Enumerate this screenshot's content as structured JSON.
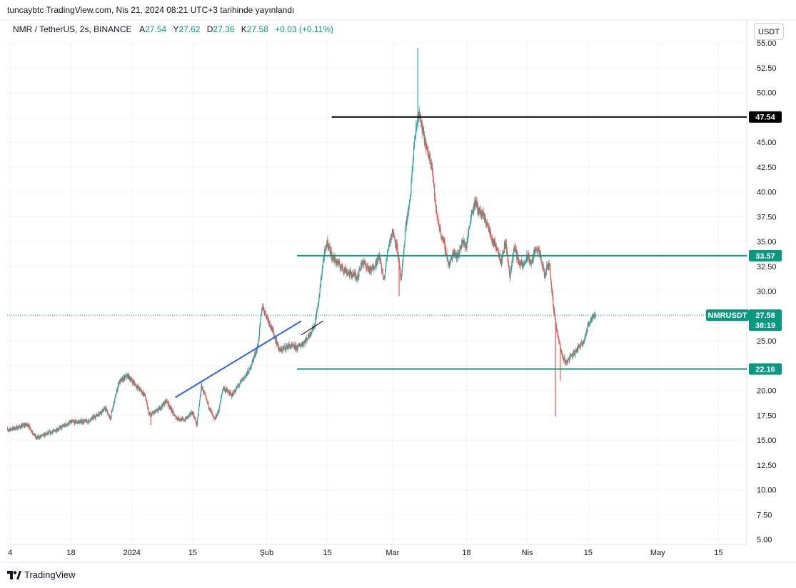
{
  "header": {
    "caption": "tuncaybtc TradingView.com, Nis 21, 2024 08:21 UTC+3 tarihinde yayınlandı"
  },
  "legend": {
    "symbol": "NMR / TetherUS, 2s, BINANCE",
    "open_label": "A",
    "open_value": "27.54",
    "high_label": "Y",
    "high_value": "27.62",
    "low_label": "D",
    "low_value": "27.36",
    "close_label": "K",
    "close_value": "27.58",
    "change": "+0.03 (+0.11%)"
  },
  "currency_button": "USDT",
  "footer": {
    "brand": "TradingView"
  },
  "colors": {
    "up": "#26a69a",
    "down": "#ef5350",
    "hline_teal": "#089981",
    "hline_black": "#000000",
    "trend_blue": "#2962ff",
    "grid": "#f0f3fa"
  },
  "chart_data": {
    "type": "candlestick",
    "title": "NMR / TetherUS, 2s, BINANCE",
    "y_axis": {
      "range": [
        4.5,
        55.0
      ],
      "ticks": [
        "5.00",
        "7.50",
        "10.00",
        "12.50",
        "15.00",
        "17.50",
        "20.00",
        "22.50",
        "25.00",
        "27.50",
        "30.00",
        "32.50",
        "35.00",
        "37.50",
        "40.00",
        "42.50",
        "45.00",
        "47.50",
        "50.00",
        "52.50",
        "55.00"
      ]
    },
    "x_axis": {
      "labels": [
        {
          "text": "4",
          "day": 4
        },
        {
          "text": "18",
          "day": 18
        },
        {
          "text": "2024",
          "day": 32
        },
        {
          "text": "15",
          "day": 46
        },
        {
          "text": "Şub",
          "day": 63
        },
        {
          "text": "15",
          "day": 77
        },
        {
          "text": "Mar",
          "day": 92
        },
        {
          "text": "18",
          "day": 109
        },
        {
          "text": "Nis",
          "day": 123
        },
        {
          "text": "15",
          "day": 137
        },
        {
          "text": "May",
          "day": 153
        },
        {
          "text": "15",
          "day": 167
        }
      ]
    },
    "price_path": [
      [
        3,
        16.0
      ],
      [
        6,
        16.3
      ],
      [
        8,
        16.6
      ],
      [
        10,
        15.2
      ],
      [
        14,
        15.9
      ],
      [
        18,
        16.8
      ],
      [
        22,
        16.9
      ],
      [
        26,
        18.2
      ],
      [
        27,
        17.1
      ],
      [
        29,
        20.8
      ],
      [
        31,
        21.5
      ],
      [
        33,
        20.5
      ],
      [
        35,
        19.5
      ],
      [
        36,
        17.5
      ],
      [
        38,
        18.0
      ],
      [
        40,
        19.0
      ],
      [
        42,
        17.3
      ],
      [
        44,
        17.0
      ],
      [
        46,
        17.8
      ],
      [
        47,
        16.5
      ],
      [
        48,
        20.5
      ],
      [
        49,
        19.2
      ],
      [
        51,
        17.0
      ],
      [
        52,
        18.0
      ],
      [
        53,
        20.3
      ],
      [
        55,
        19.5
      ],
      [
        57,
        20.8
      ],
      [
        59,
        22.0
      ],
      [
        61,
        24.5
      ],
      [
        62,
        28.5
      ],
      [
        63,
        27.5
      ],
      [
        64,
        26.5
      ],
      [
        66,
        24.0
      ],
      [
        68,
        24.5
      ],
      [
        70,
        24.3
      ],
      [
        72,
        25.0
      ],
      [
        74,
        26.5
      ],
      [
        75,
        29.0
      ],
      [
        76,
        33.0
      ],
      [
        77,
        35.0
      ],
      [
        78,
        33.5
      ],
      [
        79,
        33.0
      ],
      [
        80,
        32.5
      ],
      [
        82,
        31.8
      ],
      [
        84,
        31.5
      ],
      [
        85,
        33.0
      ],
      [
        87,
        32.0
      ],
      [
        89,
        33.5
      ],
      [
        90,
        31.0
      ],
      [
        91,
        34.5
      ],
      [
        92,
        36.0
      ],
      [
        93,
        34.5
      ],
      [
        94,
        31.0
      ],
      [
        95,
        36.5
      ],
      [
        96,
        39.0
      ],
      [
        97,
        45.0
      ],
      [
        98,
        48.0
      ],
      [
        99,
        46.0
      ],
      [
        100,
        44.0
      ],
      [
        101,
        43.0
      ],
      [
        102,
        38.0
      ],
      [
        103,
        36.0
      ],
      [
        104,
        34.5
      ],
      [
        105,
        32.5
      ],
      [
        106,
        34.0
      ],
      [
        107,
        33.5
      ],
      [
        108,
        35.0
      ],
      [
        109,
        34.5
      ],
      [
        110,
        37.5
      ],
      [
        111,
        39.0
      ],
      [
        112,
        38.0
      ],
      [
        113,
        37.5
      ],
      [
        114,
        36.5
      ],
      [
        115,
        35.0
      ],
      [
        116,
        34.5
      ],
      [
        117,
        33.0
      ],
      [
        118,
        35.0
      ],
      [
        119,
        31.5
      ],
      [
        120,
        34.5
      ],
      [
        121,
        33.0
      ],
      [
        122,
        32.5
      ],
      [
        123,
        33.5
      ],
      [
        124,
        32.8
      ],
      [
        125,
        34.5
      ],
      [
        126,
        33.5
      ],
      [
        127,
        31.5
      ],
      [
        128,
        33.0
      ],
      [
        129,
        28.5
      ],
      [
        130,
        25.5
      ],
      [
        131,
        23.5
      ],
      [
        132,
        22.8
      ],
      [
        133,
        23.5
      ],
      [
        134,
        23.8
      ],
      [
        135,
        24.5
      ],
      [
        136,
        25.0
      ],
      [
        137,
        26.5
      ],
      [
        138,
        27.5
      ],
      [
        138.7,
        27.58
      ]
    ],
    "spikes": [
      {
        "day": 97.8,
        "high": 54.5
      },
      {
        "day": 129.5,
        "low": 17.4
      },
      {
        "day": 130.6,
        "low": 21.0
      },
      {
        "day": 93.5,
        "low": 29.5
      },
      {
        "day": 36.4,
        "low": 16.5
      }
    ],
    "horizontal_levels": [
      {
        "price": 47.54,
        "label": "47.54",
        "color": "black",
        "from_day": 78
      },
      {
        "price": 33.57,
        "label": "33.57",
        "color": "teal",
        "from_day": 70
      },
      {
        "price": 22.16,
        "label": "22.16",
        "color": "teal",
        "from_day": 70
      }
    ],
    "trend_lines": [
      {
        "from": [
          42,
          19.3
        ],
        "to": [
          71,
          27.0
        ],
        "color": "blue"
      },
      {
        "from": [
          71,
          25.6
        ],
        "to": [
          76,
          27.0
        ],
        "color": "black"
      }
    ],
    "last_price": {
      "symbol": "NMRUSDT",
      "price": 27.58,
      "label": "27.58",
      "countdown": "38:19"
    }
  }
}
